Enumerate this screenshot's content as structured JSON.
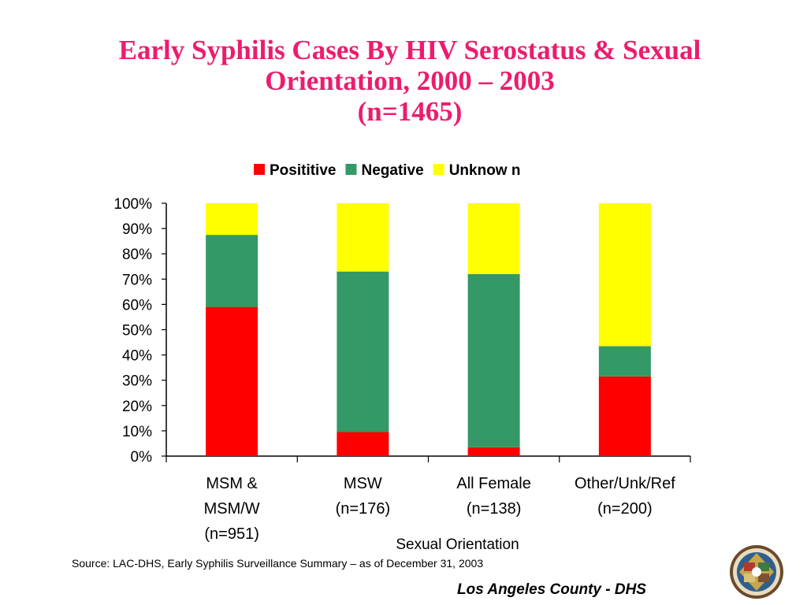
{
  "slide": {
    "title_lines": [
      "Early Syphilis Cases By HIV Serostatus & Sexual",
      "Orientation, 2000 – 2003",
      "(n=1465)"
    ],
    "source": "Source: LAC-DHS, Early Syphilis Surveillance Summary – as of December 31, 2003",
    "footer": "Los Angeles County - DHS",
    "seal_icon": "county-seal-icon"
  },
  "chart_data": {
    "type": "bar",
    "stacked": true,
    "percent_stacked": true,
    "categories": [
      [
        "MSM &",
        "MSM/W",
        "(n=951)"
      ],
      [
        "MSW",
        "(n=176)"
      ],
      [
        "All Female",
        "(n=138)"
      ],
      [
        "Other/Unk/Ref",
        "(n=200)"
      ]
    ],
    "series": [
      {
        "name": "Posititive",
        "color": "#ff0000",
        "values": [
          59,
          9.5,
          3.5,
          31.5
        ]
      },
      {
        "name": "Negative",
        "color": "#339966",
        "values": [
          28.5,
          63.5,
          68.5,
          12
        ]
      },
      {
        "name": "Unknow n",
        "color": "#ffff00",
        "values": [
          12.5,
          27,
          28,
          56.5
        ]
      }
    ],
    "xlabel": "Sexual Orientation",
    "ylabel": "",
    "ylim": [
      0,
      100
    ],
    "yticks": [
      "0%",
      "10%",
      "20%",
      "30%",
      "40%",
      "50%",
      "60%",
      "70%",
      "80%",
      "90%",
      "100%"
    ],
    "grid": false,
    "legend_position": "top"
  }
}
